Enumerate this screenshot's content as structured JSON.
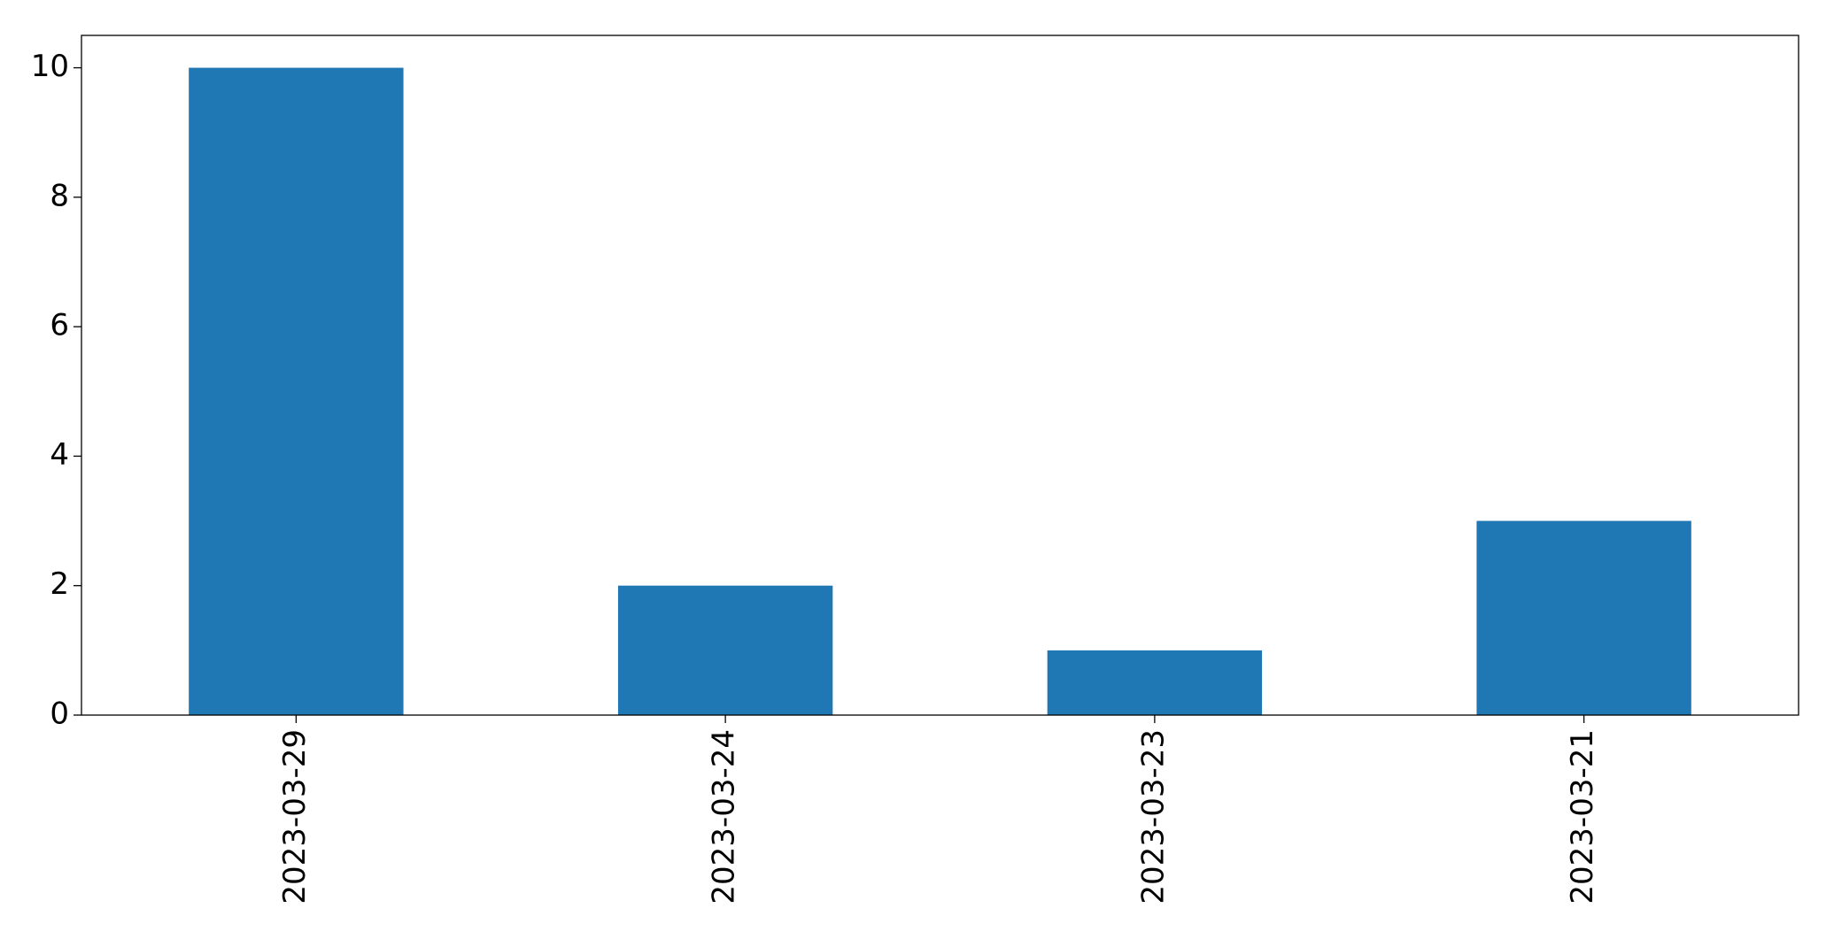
{
  "chart_data": {
    "type": "bar",
    "categories": [
      "2023-03-29",
      "2023-03-24",
      "2023-03-23",
      "2023-03-21"
    ],
    "values": [
      10,
      2,
      1,
      3
    ],
    "color": "#1f77b4",
    "ylim": [
      0,
      10.5
    ],
    "yticks": [
      0,
      2,
      4,
      6,
      8,
      10
    ],
    "grid": false
  }
}
